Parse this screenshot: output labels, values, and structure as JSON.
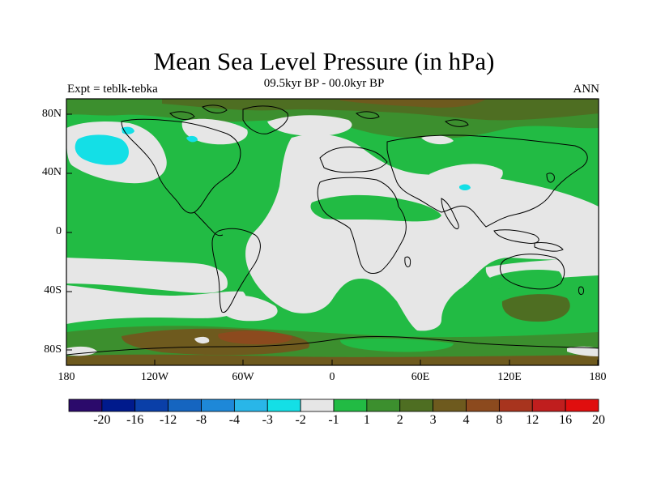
{
  "title": "Mean Sea Level Pressure (in hPa)",
  "subtitle": "09.5kyr BP - 00.0kyr BP",
  "left_label": "Expt = teblk-tebka",
  "right_label": "ANN",
  "lat_ticks": [
    "80N",
    "40N",
    "0",
    "40S",
    "80S"
  ],
  "lon_ticks": [
    "180",
    "120W",
    "60W",
    "0",
    "60E",
    "120E",
    "180"
  ],
  "colorbar": {
    "colors": [
      "#2b0a6b",
      "#001a8c",
      "#0a3fa8",
      "#1565c0",
      "#1e88d8",
      "#29b6e8",
      "#14dfe6",
      "#e6e6e6",
      "#22bb44",
      "#3c8f2e",
      "#4e6e22",
      "#6e5a1e",
      "#8c4a1e",
      "#a8341e",
      "#c01e1e",
      "#e00e0e"
    ],
    "labels": [
      "-20",
      "-16",
      "-12",
      "-8",
      "-4",
      "-3",
      "-2",
      "-1",
      "1",
      "2",
      "3",
      "4",
      "8",
      "12",
      "16",
      "20"
    ]
  }
}
